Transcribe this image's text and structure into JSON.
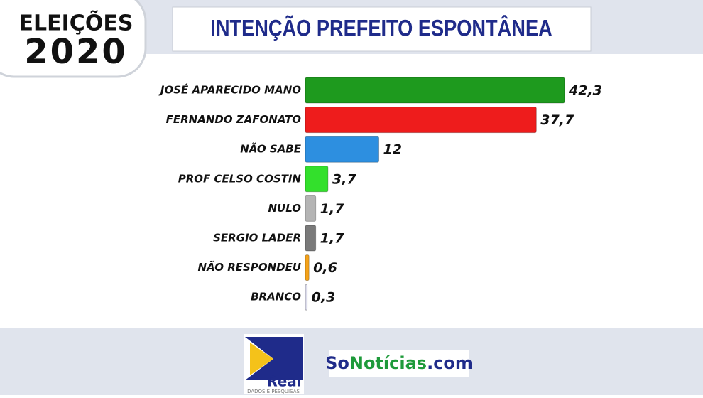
{
  "header": {
    "badge_line1": "ELEIÇÕES",
    "badge_line2": "2020"
  },
  "chart_data": {
    "type": "hbar",
    "title": "INTENÇÃO PREFEITO ESPONTÂNEA",
    "categories": [
      "JOSÉ APARECIDO MANO",
      "FERNANDO ZAFONATO",
      "NÃO SABE",
      "PROF CELSO COSTIN",
      "NULO",
      "SERGIO LADER",
      "NÃO RESPONDEU",
      "BRANCO"
    ],
    "values": [
      42.3,
      37.7,
      12,
      3.7,
      1.7,
      1.7,
      0.6,
      0.3
    ],
    "value_labels": [
      "42,3",
      "37,7",
      "12",
      "3,7",
      "1,7",
      "1,7",
      "0,6",
      "0,3"
    ],
    "colors": [
      "#1e9a1e",
      "#ee1c1c",
      "#2d8fe0",
      "#33e02c",
      "#b4b4b4",
      "#7a7a7a",
      "#f4a21a",
      "#dcdcec"
    ]
  },
  "footer": {
    "logo_name": "Real",
    "logo_tagline": "DADOS E PESQUISAS",
    "site_part1": "So",
    "site_part2": "Notícias",
    "site_part3": ".com"
  }
}
